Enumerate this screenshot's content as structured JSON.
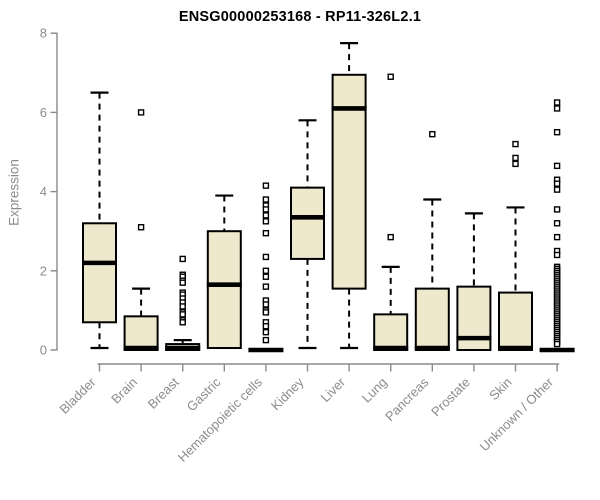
{
  "chart_data": {
    "type": "boxplot",
    "title": "ENSG00000253168 - RP11-326L2.1",
    "xlabel": "",
    "ylabel": "Expression",
    "ylim": [
      0,
      8
    ],
    "yticks": [
      0,
      2,
      4,
      6,
      8
    ],
    "grid": false,
    "legend": "none",
    "categories": [
      "Bladder",
      "Brain",
      "Breast",
      "Gastric",
      "Hematopoietic cells",
      "Kidney",
      "Liver",
      "Lung",
      "Pancreas",
      "Prostate",
      "Skin",
      "Unknown / Other"
    ],
    "boxes": [
      {
        "category": "Bladder",
        "whisker_low": 0.05,
        "q1": 0.7,
        "median": 2.2,
        "q3": 3.2,
        "whisker_high": 6.5,
        "outliers": []
      },
      {
        "category": "Brain",
        "whisker_low": 0,
        "q1": 0,
        "median": 0.05,
        "q3": 0.85,
        "whisker_high": 1.55,
        "outliers": [
          6.0,
          3.1
        ]
      },
      {
        "category": "Breast",
        "whisker_low": 0,
        "q1": 0,
        "median": 0.05,
        "q3": 0.15,
        "whisker_high": 0.25,
        "outliers": [
          2.3,
          1.9,
          1.85,
          1.75,
          1.7,
          1.45,
          1.4,
          1.3,
          1.2,
          1.1,
          0.95,
          0.9,
          0.75,
          0.7
        ]
      },
      {
        "category": "Gastric",
        "whisker_low": 0.05,
        "q1": 0.05,
        "median": 1.65,
        "q3": 3.0,
        "whisker_high": 3.9,
        "outliers": []
      },
      {
        "category": "Hematopoietic cells",
        "whisker_low": 0,
        "q1": 0,
        "median": 0,
        "q3": 0,
        "whisker_high": 0,
        "outliers": [
          4.15,
          3.8,
          3.65,
          3.55,
          3.4,
          3.25,
          2.95,
          2.35,
          2.0,
          1.85,
          1.6,
          1.25,
          1.15,
          1.0,
          0.95,
          0.7,
          0.6,
          0.45,
          0.25
        ]
      },
      {
        "category": "Kidney",
        "whisker_low": 0.05,
        "q1": 2.3,
        "median": 3.35,
        "q3": 4.1,
        "whisker_high": 5.8,
        "outliers": []
      },
      {
        "category": "Liver",
        "whisker_low": 0.05,
        "q1": 1.55,
        "median": 6.1,
        "q3": 6.95,
        "whisker_high": 7.75,
        "outliers": []
      },
      {
        "category": "Lung",
        "whisker_low": 0,
        "q1": 0,
        "median": 0.05,
        "q3": 0.9,
        "whisker_high": 2.1,
        "outliers": [
          6.9,
          2.85
        ]
      },
      {
        "category": "Pancreas",
        "whisker_low": 0,
        "q1": 0,
        "median": 0.05,
        "q3": 1.55,
        "whisker_high": 3.8,
        "outliers": [
          5.45
        ]
      },
      {
        "category": "Prostate",
        "whisker_low": 0,
        "q1": 0,
        "median": 0.3,
        "q3": 1.6,
        "whisker_high": 3.45,
        "outliers": []
      },
      {
        "category": "Skin",
        "whisker_low": 0,
        "q1": 0,
        "median": 0.05,
        "q3": 1.45,
        "whisker_high": 3.6,
        "outliers": [
          5.2,
          4.85,
          4.7
        ]
      },
      {
        "category": "Unknown / Other",
        "whisker_low": 0,
        "q1": 0,
        "median": 0,
        "q3": 0,
        "whisker_high": 0,
        "outliers": [
          6.25,
          6.1,
          5.5,
          4.65,
          4.3,
          4.2,
          4.05,
          3.55,
          3.2,
          2.85,
          2.5,
          2.4,
          2.1,
          2.05,
          2.0,
          1.95,
          1.9,
          1.85,
          1.8,
          1.75,
          1.7,
          1.65,
          1.6,
          1.55,
          1.5,
          1.45,
          1.4,
          1.35,
          1.3,
          1.25,
          1.2,
          1.15,
          1.1,
          1.05,
          1.0,
          0.95,
          0.9,
          0.85,
          0.8,
          0.75,
          0.7,
          0.65,
          0.6,
          0.55,
          0.5,
          0.45,
          0.4,
          0.35,
          0.3,
          0.25,
          0.2,
          0.15
        ]
      }
    ],
    "colors": {
      "box_fill": "#EEE8CD",
      "box_border": "#000000",
      "median": "#000000",
      "whisker": "#000000",
      "outlier_stroke": "#000000",
      "outlier_fill": "#ffffff",
      "axis": "#8a8a8a",
      "tick_label": "#8c8c8c",
      "title": "#000000"
    }
  }
}
